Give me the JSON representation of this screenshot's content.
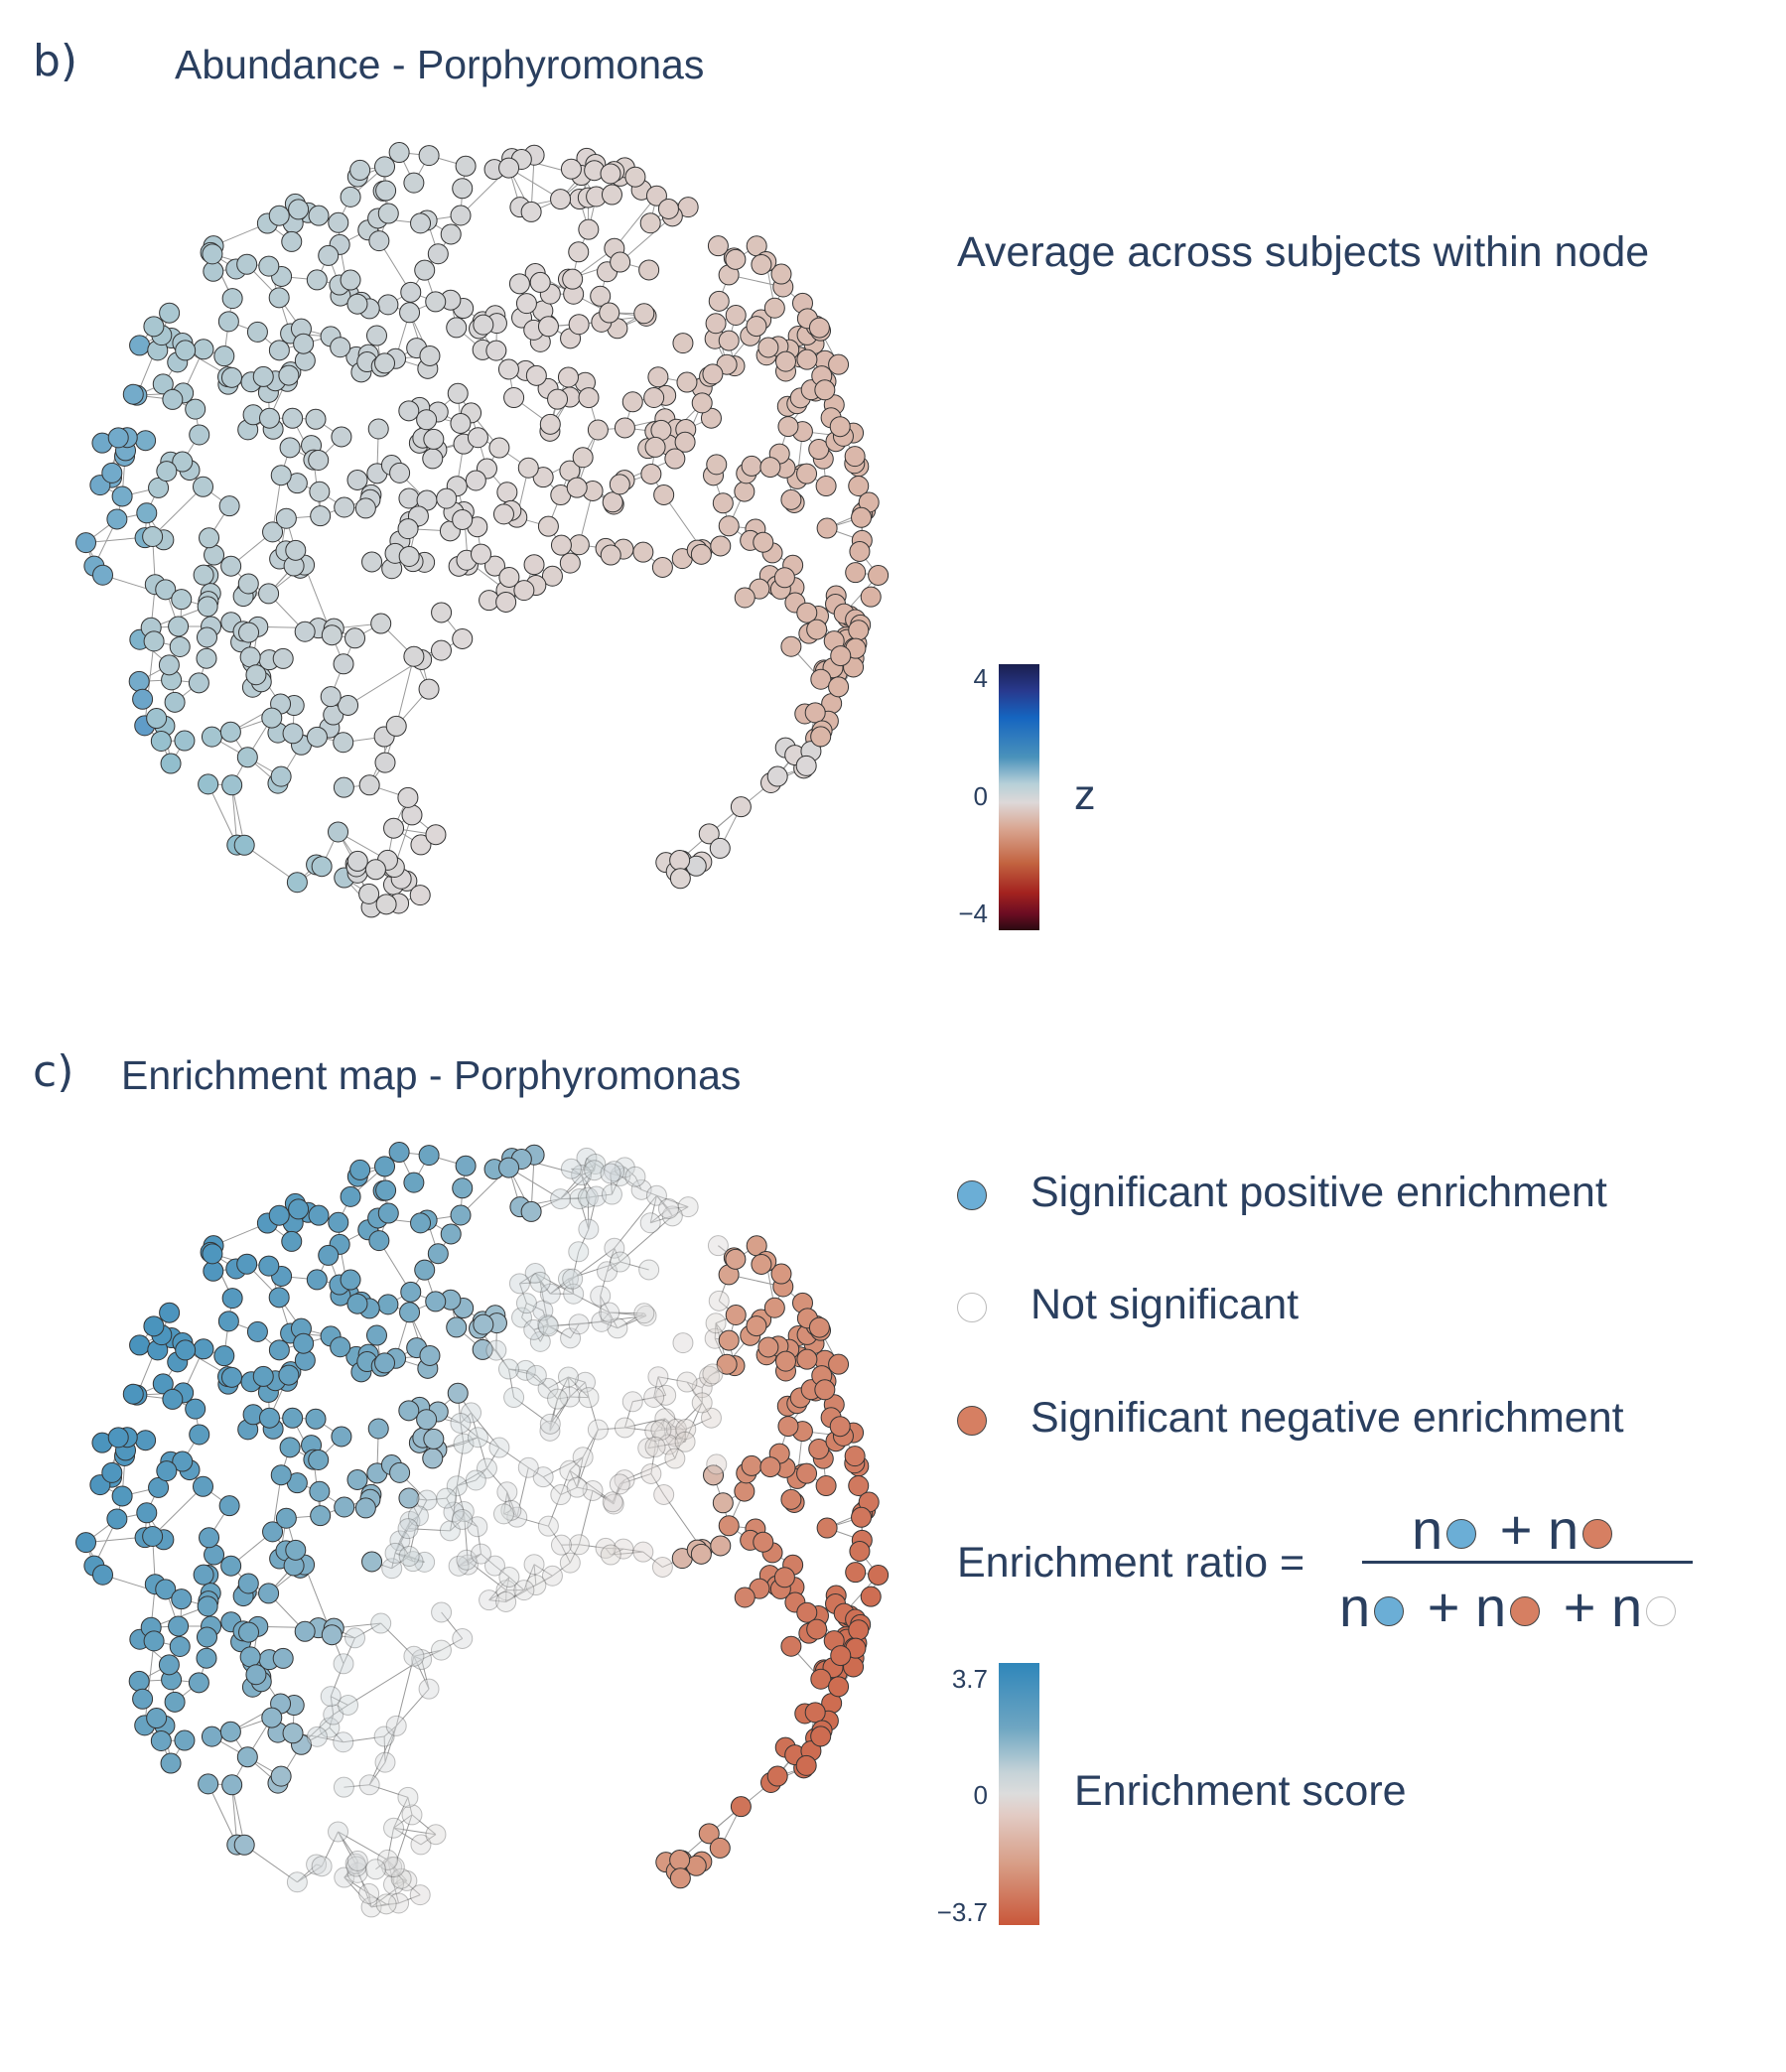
{
  "panel_b": {
    "letter": "b)",
    "title": "Abundance - Porphyromonas",
    "subtitle": "Average across subjects within node",
    "colorbar": {
      "label": "z",
      "ticks": [
        "4",
        "0",
        "−4"
      ],
      "range": [
        -4,
        4
      ]
    }
  },
  "panel_c": {
    "letter": "c)",
    "title": "Enrichment map - Porphyromonas",
    "legend": [
      {
        "label": "Significant positive enrichment",
        "color": "#6baed6"
      },
      {
        "label": "Not significant",
        "color": "#ffffff"
      },
      {
        "label": "Significant negative enrichment",
        "color": "#d67f62"
      }
    ],
    "formula": {
      "lhs": "Enrichment ratio =",
      "n": "n",
      "plus": "+"
    },
    "colorbar": {
      "label": "Enrichment score",
      "ticks": [
        "3.7",
        "0",
        "−3.7"
      ],
      "range": [
        -3.7,
        3.7
      ]
    }
  },
  "colors": {
    "text": "#2a3f5f",
    "edge": "#999999"
  }
}
